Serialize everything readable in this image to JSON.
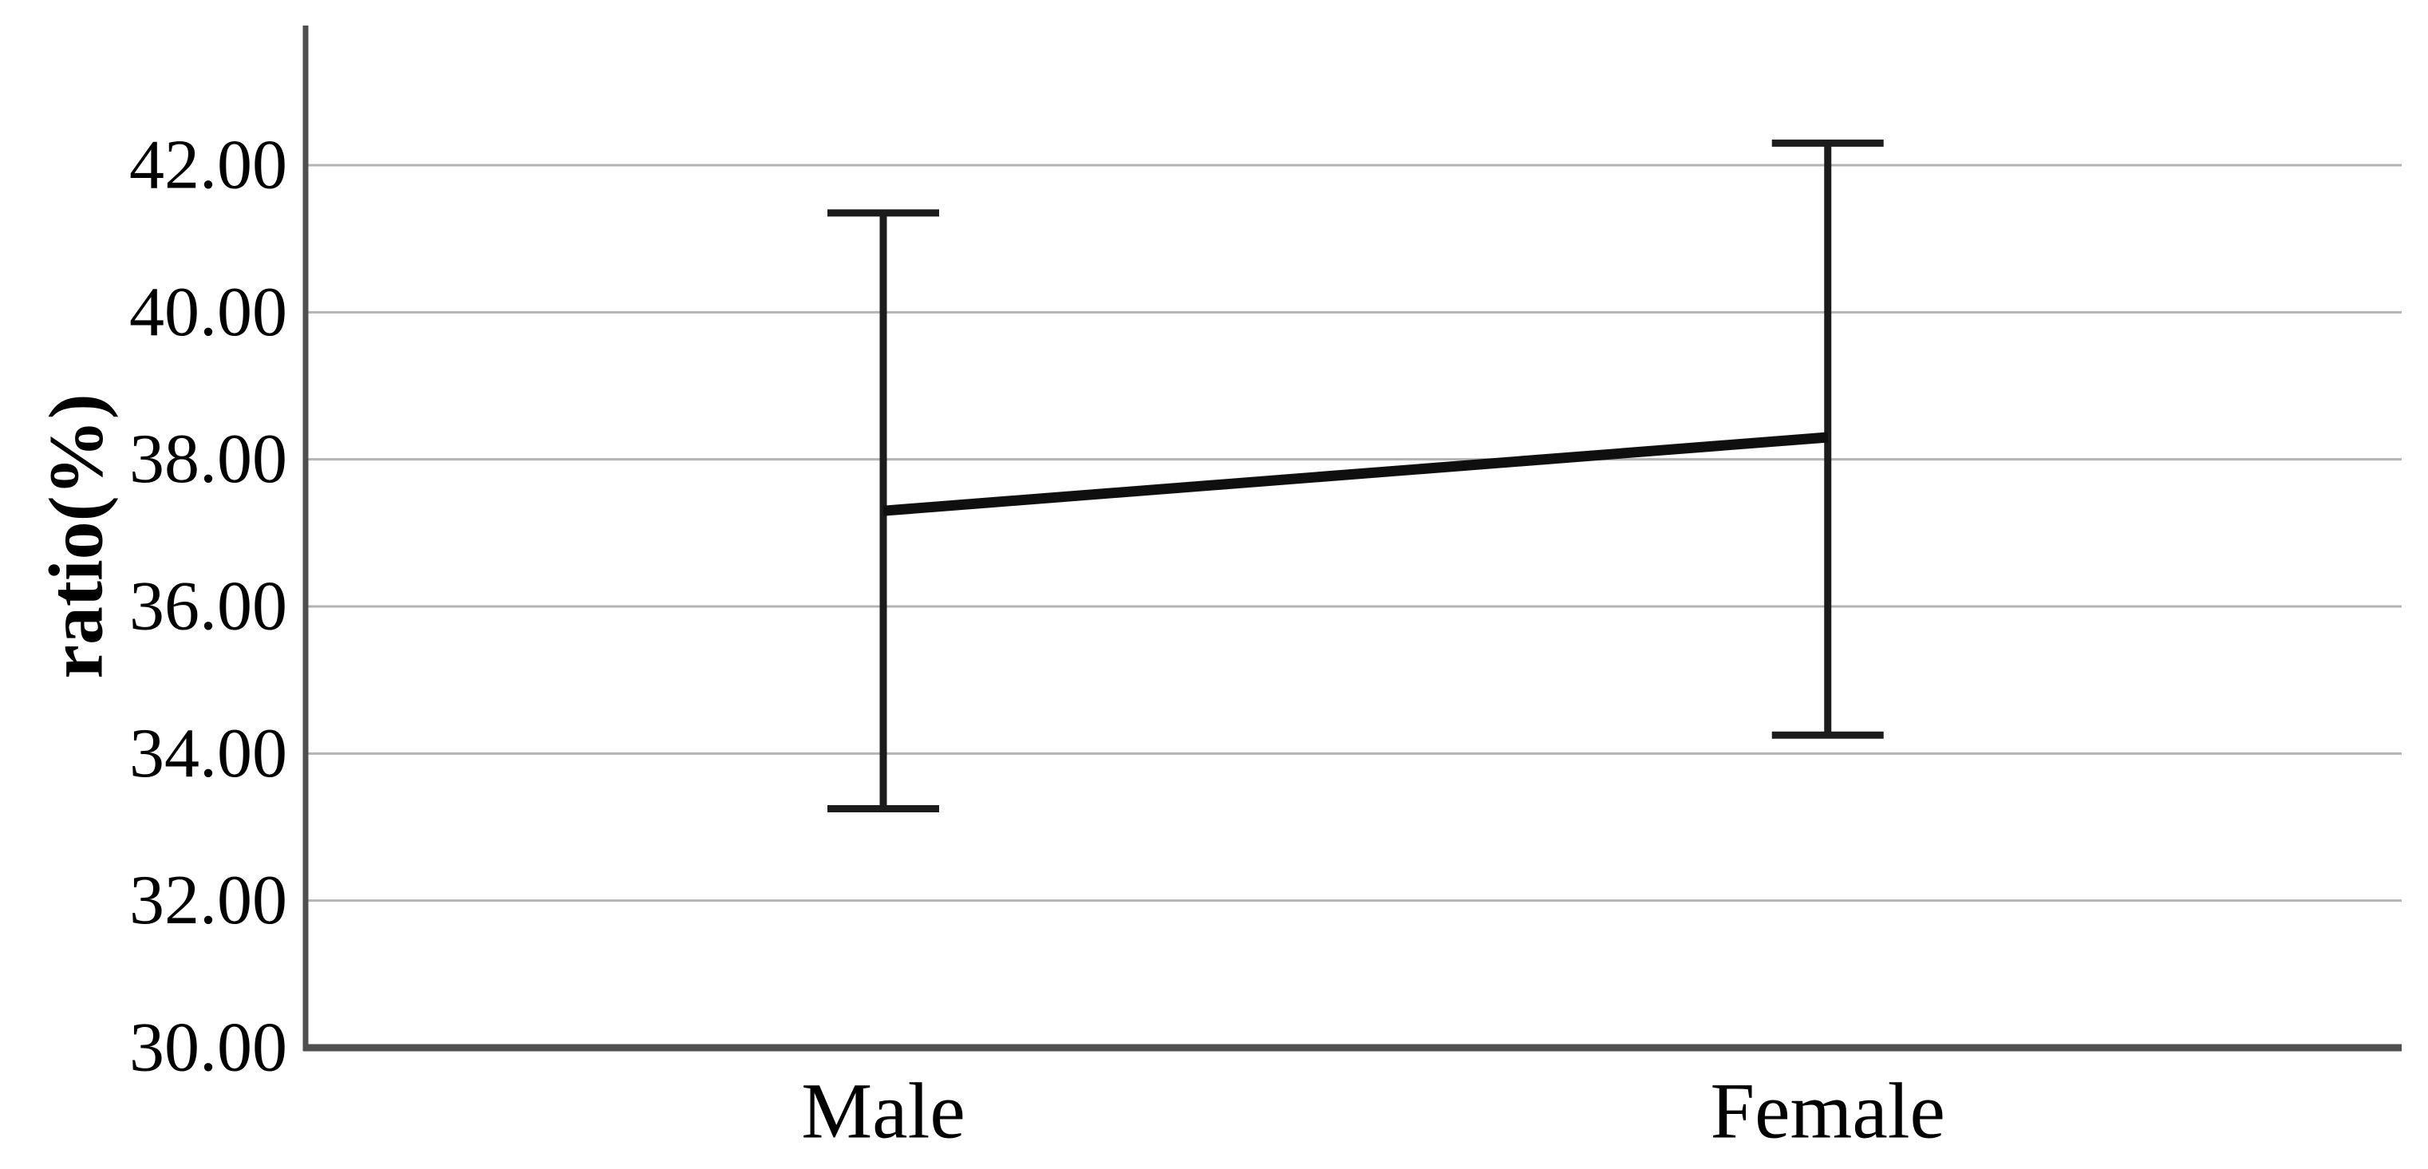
{
  "page": {
    "background": "#ffffff"
  },
  "colors": {
    "axis": "#4f4f4f",
    "gridline": "#b4b4b4",
    "mean_line": "#0f0f0f",
    "error_bar": "#1c1c1c",
    "text": "#000000"
  },
  "chart_data": {
    "type": "line",
    "title": "",
    "categories": [
      "Male",
      "Female"
    ],
    "series": [
      {
        "name": "ratio(%)",
        "values": [
          37.3,
          38.3
        ],
        "ci_low": [
          33.25,
          34.25
        ],
        "ci_high": [
          41.35,
          42.3
        ]
      }
    ],
    "xlabel": "",
    "ylabel": "ratio(%)",
    "yticks": [
      30,
      32,
      34,
      36,
      38,
      40,
      42
    ],
    "ytick_labels": [
      "30.00",
      "32.00",
      "34.00",
      "36.00",
      "38.00",
      "40.00",
      "42.00"
    ],
    "ylim": [
      30,
      43.9
    ],
    "grid": "horizontal",
    "legend": "none",
    "error_bars": "caps",
    "markers": "none"
  }
}
